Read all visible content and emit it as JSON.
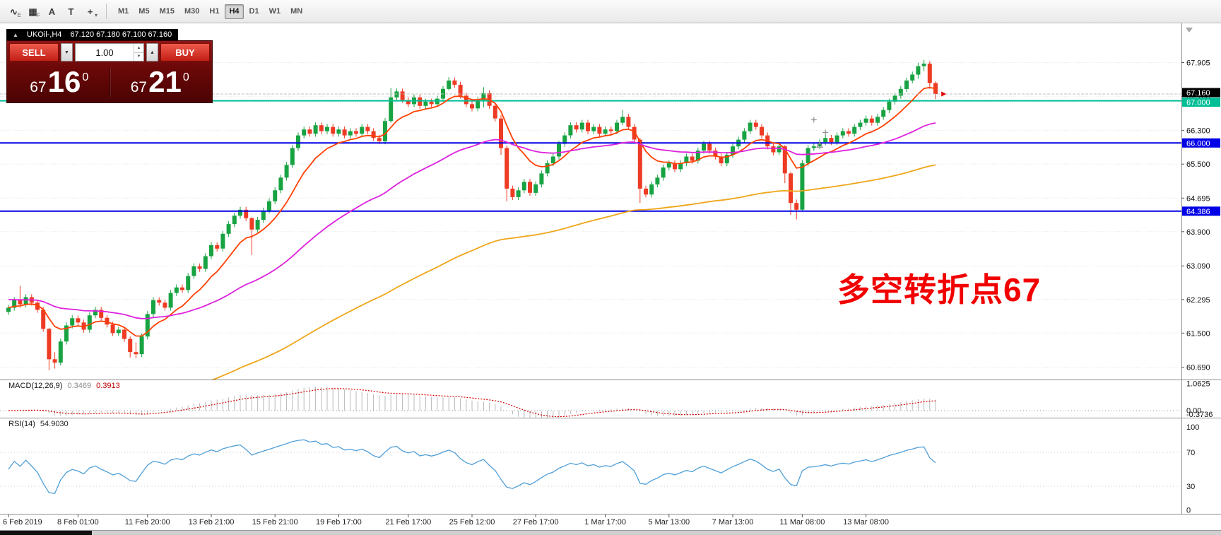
{
  "toolbar": {
    "icon_buttons": [
      {
        "name": "indicators-tool-icon",
        "glyph": "∿",
        "badge": "E"
      },
      {
        "name": "grid-tool-icon",
        "glyph": "▦",
        "badge": "F"
      },
      {
        "name": "text-tool-icon",
        "glyph": "A",
        "badge": ""
      },
      {
        "name": "template-tool-icon",
        "glyph": "T",
        "badge": ""
      },
      {
        "name": "crosshair-tool-icon",
        "glyph": "+",
        "badge": "▾"
      }
    ],
    "timeframes": [
      "M1",
      "M5",
      "M15",
      "M30",
      "H1",
      "H4",
      "D1",
      "W1",
      "MN"
    ],
    "active_timeframe": "H4"
  },
  "symbol_header": {
    "marker": "▲",
    "title": "UKOil-,H4",
    "ohlc": "67.120 67.180 67.100 67.160"
  },
  "trade_panel": {
    "sell_label": "SELL",
    "buy_label": "BUY",
    "volume": "1.00",
    "dropdown_glyph": "▼",
    "up_glyph": "▲",
    "spin_up": "▲",
    "spin_down": "▼",
    "sell_price": {
      "main": "67",
      "big": "16",
      "pip": "0"
    },
    "buy_price": {
      "main": "67",
      "big": "21",
      "pip": "0"
    }
  },
  "annotation": {
    "text": "多空转折点67",
    "color": "#f20000"
  },
  "macd_header": {
    "name": "MACD(12,26,9)",
    "v1": "0.3469",
    "v2": "0.3913"
  },
  "rsi_header": {
    "name": "RSI(14)",
    "v": "54.9030"
  },
  "chart_data": {
    "type": "candlestick",
    "title": "UKOil-,H4",
    "timeframe": "H4",
    "ohlc_current": {
      "open": 67.12,
      "high": 67.18,
      "low": 67.1,
      "close": 67.16
    },
    "ylim": [
      60.4,
      68.8
    ],
    "price_ticks": [
      67.905,
      67.1,
      66.3,
      65.5,
      64.695,
      63.9,
      63.09,
      62.295,
      61.5,
      60.69
    ],
    "bid": 67.16,
    "bid_label": "67.160",
    "hlines": [
      {
        "price": 67.0,
        "label": "67.000",
        "color": "#00BE96"
      },
      {
        "price": 66.0,
        "label": "66.000",
        "color": "#0000E6"
      },
      {
        "price": 64.386,
        "label": "64.386",
        "color": "#0000E6"
      }
    ],
    "candles": {
      "up_color": "#18A342",
      "down_color": "#EE3B24",
      "default_wick": 0.07,
      "first_open": 62.0,
      "closes": [
        62.1,
        62.28,
        62.18,
        62.35,
        62.22,
        62.05,
        61.6,
        60.88,
        60.8,
        61.3,
        61.68,
        61.85,
        61.75,
        61.58,
        61.92,
        62.05,
        61.86,
        61.7,
        61.5,
        61.58,
        61.36,
        61.05,
        61.0,
        61.42,
        61.95,
        62.28,
        62.22,
        62.1,
        62.45,
        62.58,
        62.52,
        62.85,
        63.08,
        63.02,
        63.32,
        63.58,
        63.5,
        63.85,
        64.08,
        64.28,
        64.42,
        64.22,
        63.95,
        64.18,
        64.4,
        64.62,
        64.88,
        65.18,
        65.48,
        65.88,
        66.18,
        66.32,
        66.22,
        66.42,
        66.28,
        66.38,
        66.22,
        66.32,
        66.18,
        66.28,
        66.22,
        66.38,
        66.28,
        66.12,
        66.04,
        66.52,
        67.08,
        67.22,
        67.02,
        66.92,
        67.08,
        66.88,
        66.98,
        66.92,
        67.05,
        67.28,
        67.48,
        67.38,
        67.12,
        66.92,
        66.82,
        67.02,
        67.18,
        66.88,
        66.58,
        65.88,
        64.92,
        64.72,
        64.88,
        65.08,
        64.82,
        65.02,
        65.28,
        65.52,
        65.68,
        65.98,
        66.18,
        66.42,
        66.32,
        66.48,
        66.28,
        66.38,
        66.22,
        66.32,
        66.28,
        66.48,
        66.62,
        66.38,
        66.08,
        64.92,
        64.78,
        65.02,
        65.18,
        65.42,
        65.52,
        65.38,
        65.52,
        65.68,
        65.58,
        65.82,
        65.98,
        65.82,
        65.68,
        65.52,
        65.72,
        65.92,
        66.08,
        66.28,
        66.48,
        66.38,
        66.18,
        65.92,
        65.78,
        65.92,
        65.28,
        64.58,
        64.42,
        65.52,
        65.88,
        65.92,
        66.02,
        66.12,
        66.02,
        66.18,
        66.28,
        66.22,
        66.38,
        66.48,
        66.58,
        66.48,
        66.62,
        66.78,
        66.98,
        67.12,
        67.28,
        67.48,
        67.62,
        67.82,
        67.88,
        67.42,
        67.16
      ],
      "special_wicks": {
        "2": [
          62.62,
          62.1
        ],
        "7": [
          61.62,
          60.62
        ],
        "8": [
          61.05,
          60.66
        ],
        "21": [
          61.42,
          60.92
        ],
        "22": [
          61.28,
          60.9
        ],
        "42": [
          64.24,
          63.35
        ],
        "66": [
          67.3,
          66.48
        ],
        "76": [
          67.56,
          67.24
        ],
        "82": [
          67.32,
          66.84
        ],
        "85": [
          66.66,
          65.72
        ],
        "86": [
          65.94,
          64.62
        ],
        "106": [
          66.78,
          66.42
        ],
        "109": [
          66.12,
          64.58
        ],
        "134": [
          65.95,
          65.05
        ],
        "135": [
          65.32,
          64.3
        ],
        "136": [
          64.66,
          64.19
        ],
        "137": [
          65.6,
          64.38
        ],
        "157": [
          67.9,
          67.52
        ],
        "158": [
          67.97,
          67.7
        ],
        "159": [
          67.94,
          67.28
        ],
        "160": [
          67.46,
          67.04
        ]
      }
    },
    "moving_averages": [
      {
        "period": 10,
        "color": "#FF4000",
        "seed": null
      },
      {
        "period": 45,
        "color": "#DD22DD",
        "seed": 62.3
      },
      {
        "period": 120,
        "color": "#EFA519",
        "seed": 59.0
      }
    ],
    "markers": [
      {
        "type": "cross",
        "bar": 139,
        "price": 66.55
      },
      {
        "type": "cross",
        "bar": 141,
        "price": 66.25
      },
      {
        "type": "arrow-up",
        "bar": 140,
        "price": 65.95
      },
      {
        "type": "arrow-right",
        "bar": 161,
        "price": 67.16,
        "color": "#E00000"
      }
    ],
    "time_labels": [
      {
        "text": "6 Feb 2019",
        "bar": 0
      },
      {
        "text": "8 Feb 01:00",
        "bar": 12
      },
      {
        "text": "11 Feb 20:00",
        "bar": 24
      },
      {
        "text": "13 Feb 21:00",
        "bar": 35
      },
      {
        "text": "15 Feb 21:00",
        "bar": 46
      },
      {
        "text": "19 Feb 17:00",
        "bar": 57
      },
      {
        "text": "21 Feb 17:00",
        "bar": 69
      },
      {
        "text": "25 Feb 12:00",
        "bar": 80
      },
      {
        "text": "27 Feb 17:00",
        "bar": 91
      },
      {
        "text": "1 Mar 17:00",
        "bar": 103
      },
      {
        "text": "5 Mar 13:00",
        "bar": 114
      },
      {
        "text": "7 Mar 13:00",
        "bar": 125
      },
      {
        "text": "11 Mar 08:00",
        "bar": 137
      },
      {
        "text": "13 Mar 08:00",
        "bar": 148
      }
    ],
    "indicators": [
      {
        "name": "MACD",
        "params": "12,26,9",
        "values": [
          0.3469,
          0.3913
        ],
        "axis_values": [
          1.0625,
          0,
          -0.3736
        ],
        "axis_labels": [
          "1.0625",
          "0.00",
          "-0.3736"
        ],
        "histogram_color": "#B8B8B8",
        "signal_color": "#D40000"
      },
      {
        "name": "RSI",
        "params": "14",
        "value": 54.903,
        "axis_values": [
          100,
          70,
          30,
          0
        ],
        "axis_labels": [
          "100",
          "70",
          "30",
          "0"
        ],
        "levels": [
          70,
          30
        ],
        "line_color": "#4F9FD8"
      }
    ]
  }
}
